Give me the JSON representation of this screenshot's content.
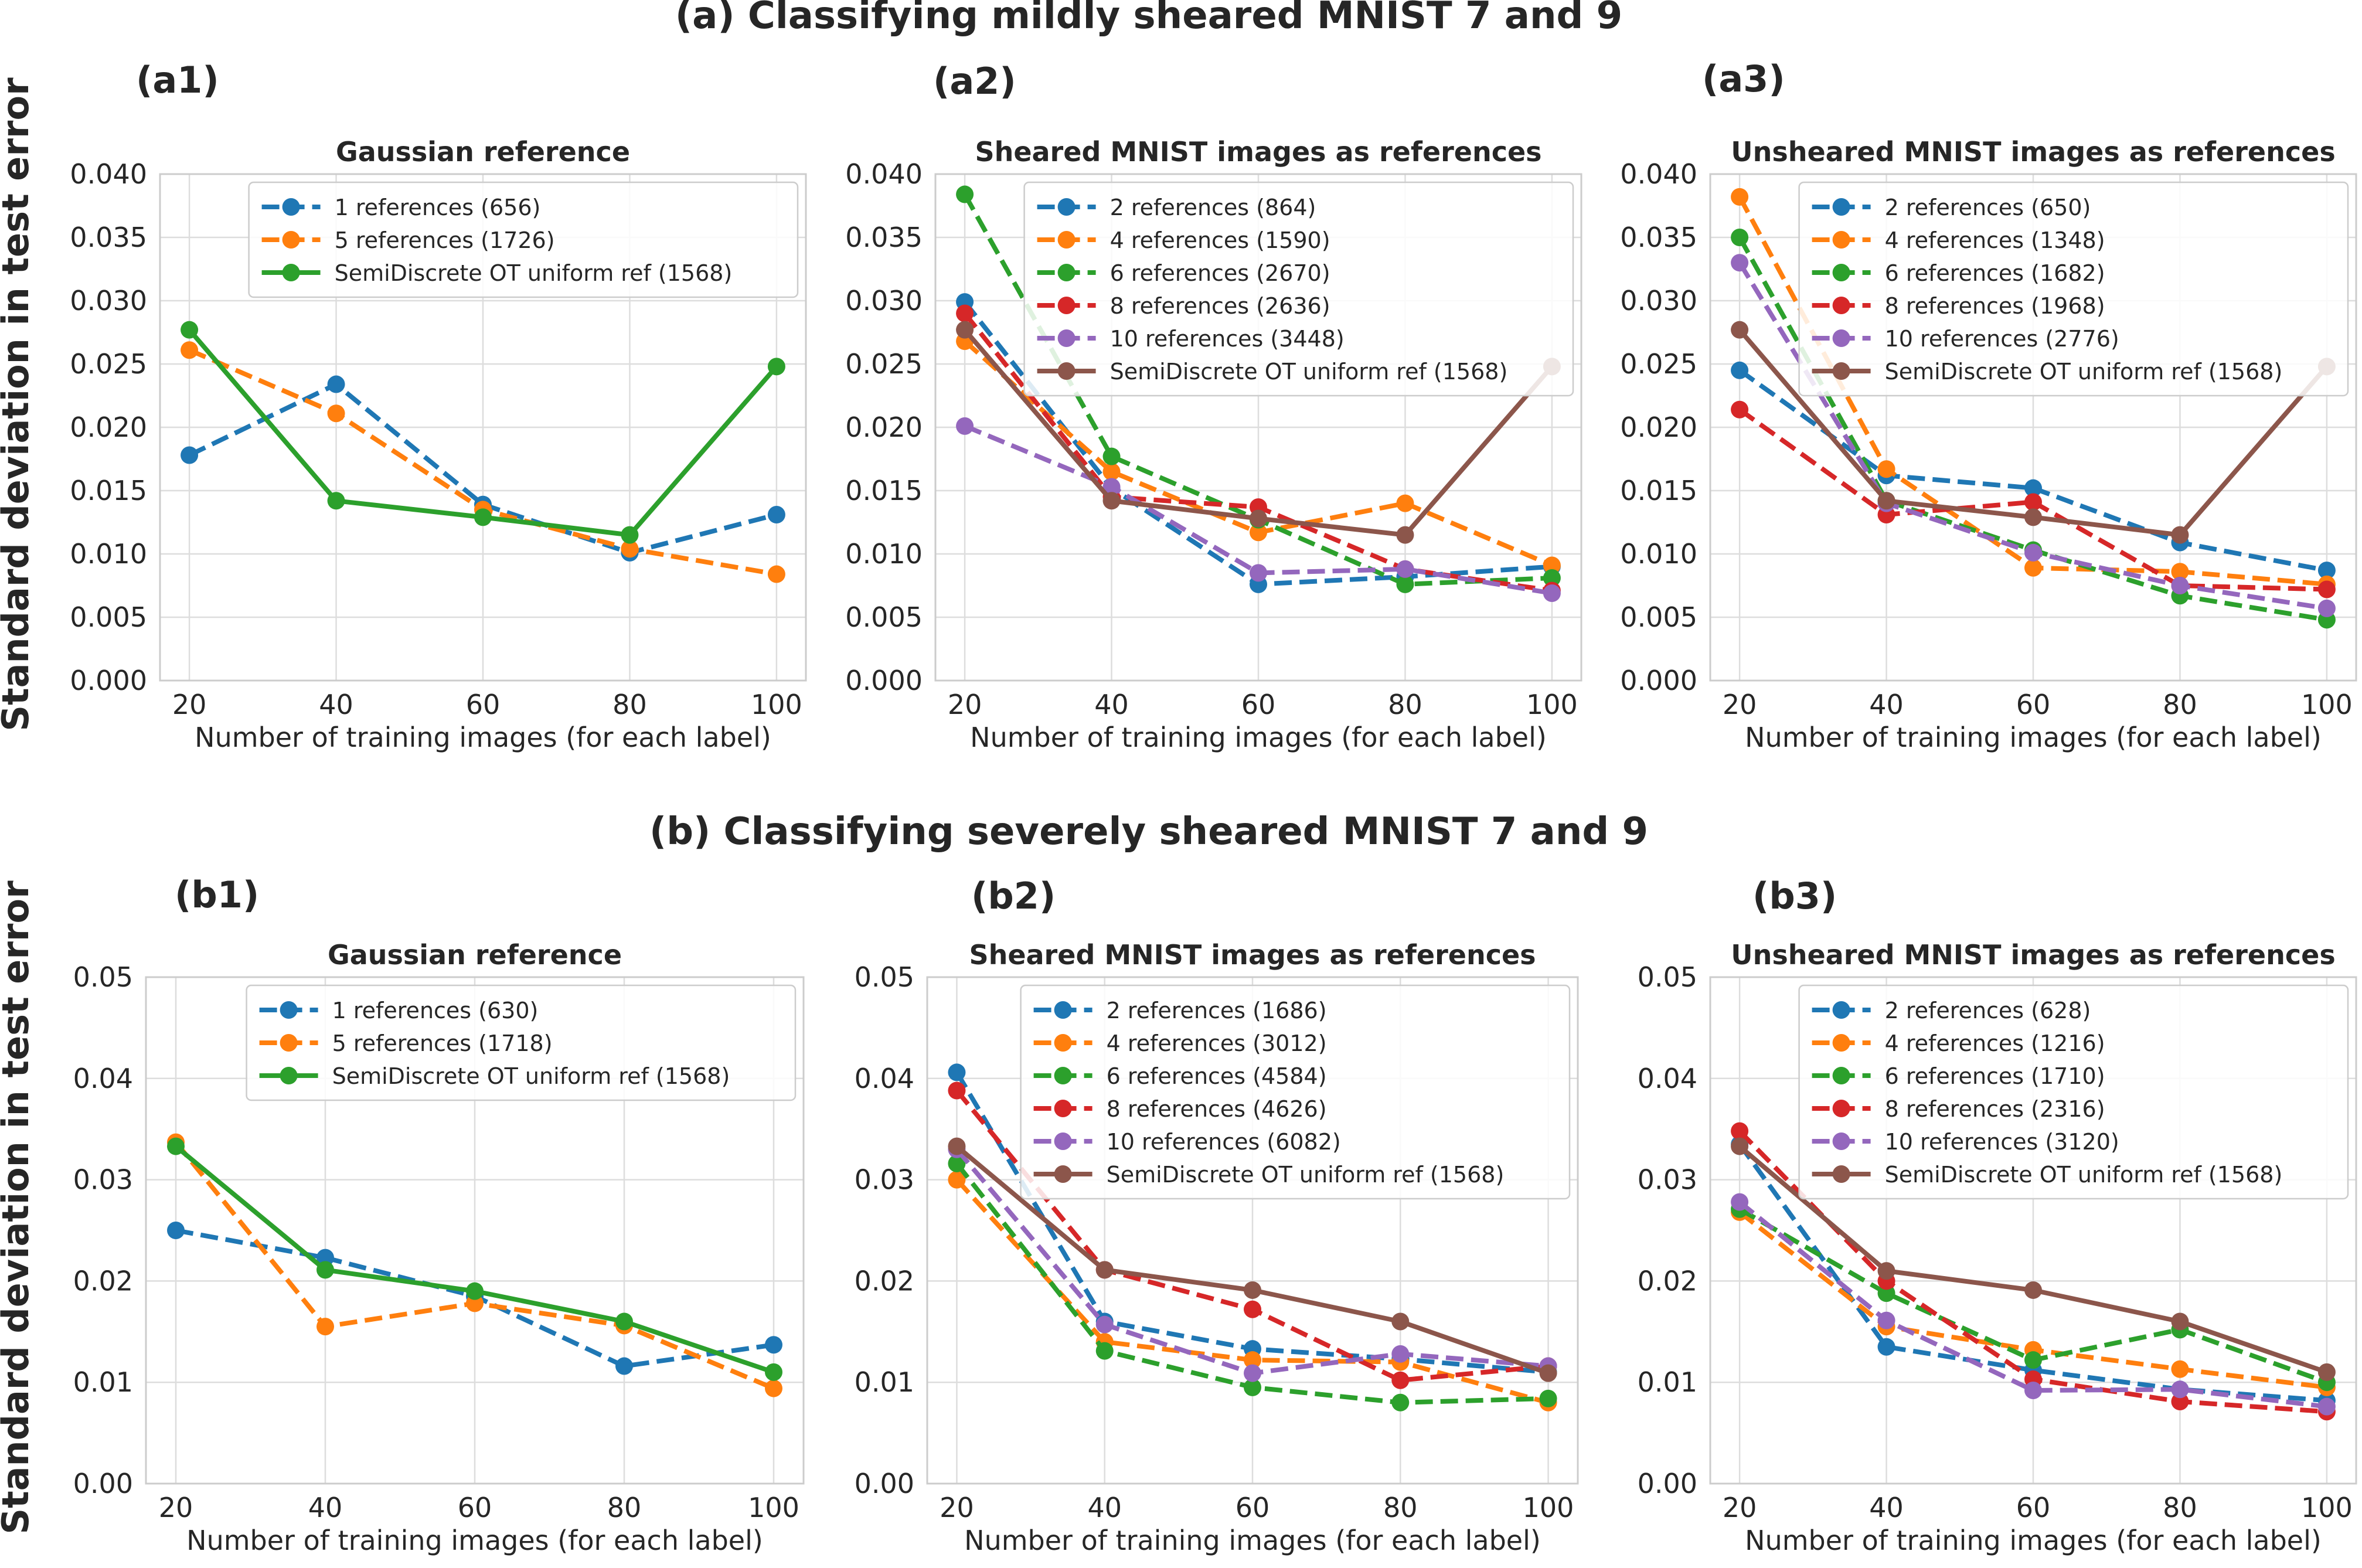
{
  "figure": {
    "ylabel": "Standard deviation in test error",
    "row_titles": [
      "(a) Classifying mildly sheared MNIST 7 and 9",
      "(b) Classifying severely sheared MNIST 7 and 9"
    ]
  },
  "colors": {
    "blue": "#1f77b4",
    "orange": "#ff7f0e",
    "green": "#2ca02c",
    "red": "#d62728",
    "purple": "#9467bd",
    "brown": "#8c564b"
  },
  "chart_data": [
    {
      "type": "line",
      "panel_label": "(a1)",
      "title": "Gaussian reference",
      "xlabel": "Number of training images (for each label)",
      "ylabel": "Standard deviation in test error",
      "x": [
        20,
        40,
        60,
        80,
        100
      ],
      "xticks": [
        "20",
        "40",
        "60",
        "80",
        "100"
      ],
      "ylim": [
        0,
        0.04
      ],
      "yticks": [
        "0.000",
        "0.005",
        "0.010",
        "0.015",
        "0.020",
        "0.025",
        "0.030",
        "0.035",
        "0.040"
      ],
      "grid": true,
      "legend": "upper-right",
      "series": [
        {
          "name": "1 references (656)",
          "color": "#1f77b4",
          "style": "dashed",
          "values": [
            0.0178,
            0.0234,
            0.0139,
            0.0101,
            0.0131
          ]
        },
        {
          "name": "5 references (1726)",
          "color": "#ff7f0e",
          "style": "dashed",
          "values": [
            0.0261,
            0.0211,
            0.0135,
            0.0104,
            0.0084
          ]
        },
        {
          "name": "SemiDiscrete OT uniform ref (1568)",
          "color": "#2ca02c",
          "style": "solid",
          "values": [
            0.0277,
            0.0142,
            0.0129,
            0.0115,
            0.0248
          ]
        }
      ]
    },
    {
      "type": "line",
      "panel_label": "(a2)",
      "title": "Sheared MNIST images as references",
      "xlabel": "Number of training images (for each label)",
      "ylabel": "",
      "x": [
        20,
        40,
        60,
        80,
        100
      ],
      "xticks": [
        "20",
        "40",
        "60",
        "80",
        "100"
      ],
      "ylim": [
        0,
        0.04
      ],
      "yticks": [
        "0.000",
        "0.005",
        "0.010",
        "0.015",
        "0.020",
        "0.025",
        "0.030",
        "0.035",
        "0.040"
      ],
      "grid": true,
      "legend": "upper-right",
      "series": [
        {
          "name": "2 references (864)",
          "color": "#1f77b4",
          "style": "dashed",
          "values": [
            0.0299,
            0.0152,
            0.0076,
            0.0082,
            0.009
          ]
        },
        {
          "name": "4 references (1590)",
          "color": "#ff7f0e",
          "style": "dashed",
          "values": [
            0.0268,
            0.0165,
            0.0117,
            0.014,
            0.0091
          ]
        },
        {
          "name": "6 references (2670)",
          "color": "#2ca02c",
          "style": "dashed",
          "values": [
            0.0384,
            0.0177,
            0.0127,
            0.0076,
            0.0081
          ]
        },
        {
          "name": "8 references (2636)",
          "color": "#d62728",
          "style": "dashed",
          "values": [
            0.029,
            0.0145,
            0.0137,
            0.0088,
            0.0071
          ]
        },
        {
          "name": "10 references (3448)",
          "color": "#9467bd",
          "style": "dashed",
          "values": [
            0.0201,
            0.0153,
            0.0085,
            0.0088,
            0.0069
          ]
        },
        {
          "name": "SemiDiscrete OT uniform ref (1568)",
          "color": "#8c564b",
          "style": "solid",
          "values": [
            0.0277,
            0.0142,
            0.0128,
            0.0115,
            0.0248
          ]
        }
      ]
    },
    {
      "type": "line",
      "panel_label": "(a3)",
      "title": "Unsheared MNIST images as references",
      "xlabel": "Number of training images (for each label)",
      "ylabel": "",
      "x": [
        20,
        40,
        60,
        80,
        100
      ],
      "xticks": [
        "20",
        "40",
        "60",
        "80",
        "100"
      ],
      "ylim": [
        0,
        0.04
      ],
      "yticks": [
        "0.000",
        "0.005",
        "0.010",
        "0.015",
        "0.020",
        "0.025",
        "0.030",
        "0.035",
        "0.040"
      ],
      "grid": true,
      "legend": "upper-right",
      "series": [
        {
          "name": "2 references (650)",
          "color": "#1f77b4",
          "style": "dashed",
          "values": [
            0.0245,
            0.0162,
            0.0152,
            0.0109,
            0.0087
          ]
        },
        {
          "name": "4 references (1348)",
          "color": "#ff7f0e",
          "style": "dashed",
          "values": [
            0.0382,
            0.0167,
            0.0089,
            0.0086,
            0.0076
          ]
        },
        {
          "name": "6 references (1682)",
          "color": "#2ca02c",
          "style": "dashed",
          "values": [
            0.035,
            0.0142,
            0.0103,
            0.0067,
            0.0048
          ]
        },
        {
          "name": "8 references (1968)",
          "color": "#d62728",
          "style": "dashed",
          "values": [
            0.0214,
            0.0131,
            0.0141,
            0.0075,
            0.0072
          ]
        },
        {
          "name": "10 references (2776)",
          "color": "#9467bd",
          "style": "dashed",
          "values": [
            0.033,
            0.014,
            0.0101,
            0.0075,
            0.0057
          ]
        },
        {
          "name": "SemiDiscrete OT uniform ref (1568)",
          "color": "#8c564b",
          "style": "solid",
          "values": [
            0.0277,
            0.0142,
            0.0129,
            0.0115,
            0.0248
          ]
        }
      ]
    },
    {
      "type": "line",
      "panel_label": "(b1)",
      "title": "Gaussian reference",
      "xlabel": "Number of training images (for each label)",
      "ylabel": "Standard deviation in test error",
      "x": [
        20,
        40,
        60,
        80,
        100
      ],
      "xticks": [
        "20",
        "40",
        "60",
        "80",
        "100"
      ],
      "ylim": [
        0,
        0.05
      ],
      "yticks": [
        "0.00",
        "0.01",
        "0.02",
        "0.03",
        "0.04",
        "0.05"
      ],
      "grid": true,
      "legend": "upper-right",
      "series": [
        {
          "name": "1 references (630)",
          "color": "#1f77b4",
          "style": "dashed",
          "values": [
            0.025,
            0.0223,
            0.0185,
            0.0116,
            0.0137
          ]
        },
        {
          "name": "5 references (1718)",
          "color": "#ff7f0e",
          "style": "dashed",
          "values": [
            0.0337,
            0.0155,
            0.0178,
            0.0156,
            0.0094
          ]
        },
        {
          "name": "SemiDiscrete OT uniform ref (1568)",
          "color": "#2ca02c",
          "style": "solid",
          "values": [
            0.0333,
            0.0211,
            0.019,
            0.016,
            0.011
          ]
        }
      ]
    },
    {
      "type": "line",
      "panel_label": "(b2)",
      "title": "Sheared MNIST images as references",
      "xlabel": "Number of training images (for each label)",
      "ylabel": "",
      "x": [
        20,
        40,
        60,
        80,
        100
      ],
      "xticks": [
        "20",
        "40",
        "60",
        "80",
        "100"
      ],
      "ylim": [
        0,
        0.05
      ],
      "yticks": [
        "0.00",
        "0.01",
        "0.02",
        "0.03",
        "0.04",
        "0.05"
      ],
      "grid": true,
      "legend": "upper-right",
      "series": [
        {
          "name": "2 references (1686)",
          "color": "#1f77b4",
          "style": "dashed",
          "values": [
            0.0406,
            0.016,
            0.0133,
            0.0123,
            0.011
          ]
        },
        {
          "name": "4 references (3012)",
          "color": "#ff7f0e",
          "style": "dashed",
          "values": [
            0.03,
            0.014,
            0.0122,
            0.012,
            0.008
          ]
        },
        {
          "name": "6 references (4584)",
          "color": "#2ca02c",
          "style": "dashed",
          "values": [
            0.0316,
            0.0131,
            0.0095,
            0.008,
            0.0084
          ]
        },
        {
          "name": "8 references (4626)",
          "color": "#d62728",
          "style": "dashed",
          "values": [
            0.0388,
            0.0211,
            0.0172,
            0.0102,
            0.0116
          ]
        },
        {
          "name": "10 references (6082)",
          "color": "#9467bd",
          "style": "dashed",
          "values": [
            0.033,
            0.0157,
            0.0109,
            0.0128,
            0.0116
          ]
        },
        {
          "name": "SemiDiscrete OT uniform ref (1568)",
          "color": "#8c564b",
          "style": "solid",
          "values": [
            0.0333,
            0.0211,
            0.0191,
            0.016,
            0.0109
          ]
        }
      ]
    },
    {
      "type": "line",
      "panel_label": "(b3)",
      "title": "Unsheared MNIST images as references",
      "xlabel": "Number of training images (for each label)",
      "ylabel": "",
      "x": [
        20,
        40,
        60,
        80,
        100
      ],
      "xticks": [
        "20",
        "40",
        "60",
        "80",
        "100"
      ],
      "ylim": [
        0,
        0.05
      ],
      "yticks": [
        "0.00",
        "0.01",
        "0.02",
        "0.03",
        "0.04",
        "0.05"
      ],
      "grid": true,
      "legend": "upper-right",
      "series": [
        {
          "name": "2 references (628)",
          "color": "#1f77b4",
          "style": "dashed",
          "values": [
            0.0335,
            0.0135,
            0.0112,
            0.0093,
            0.0082
          ]
        },
        {
          "name": "4 references (1216)",
          "color": "#ff7f0e",
          "style": "dashed",
          "values": [
            0.0268,
            0.0155,
            0.0132,
            0.0113,
            0.0095
          ]
        },
        {
          "name": "6 references (1710)",
          "color": "#2ca02c",
          "style": "dashed",
          "values": [
            0.0271,
            0.0188,
            0.0122,
            0.0152,
            0.01
          ]
        },
        {
          "name": "8 references (2316)",
          "color": "#d62728",
          "style": "dashed",
          "values": [
            0.0348,
            0.02,
            0.0103,
            0.0081,
            0.0071
          ]
        },
        {
          "name": "10 references (3120)",
          "color": "#9467bd",
          "style": "dashed",
          "values": [
            0.0278,
            0.0161,
            0.0092,
            0.0093,
            0.0076
          ]
        },
        {
          "name": "SemiDiscrete OT uniform ref (1568)",
          "color": "#8c564b",
          "style": "solid",
          "values": [
            0.0333,
            0.021,
            0.0191,
            0.016,
            0.011
          ]
        }
      ]
    }
  ]
}
